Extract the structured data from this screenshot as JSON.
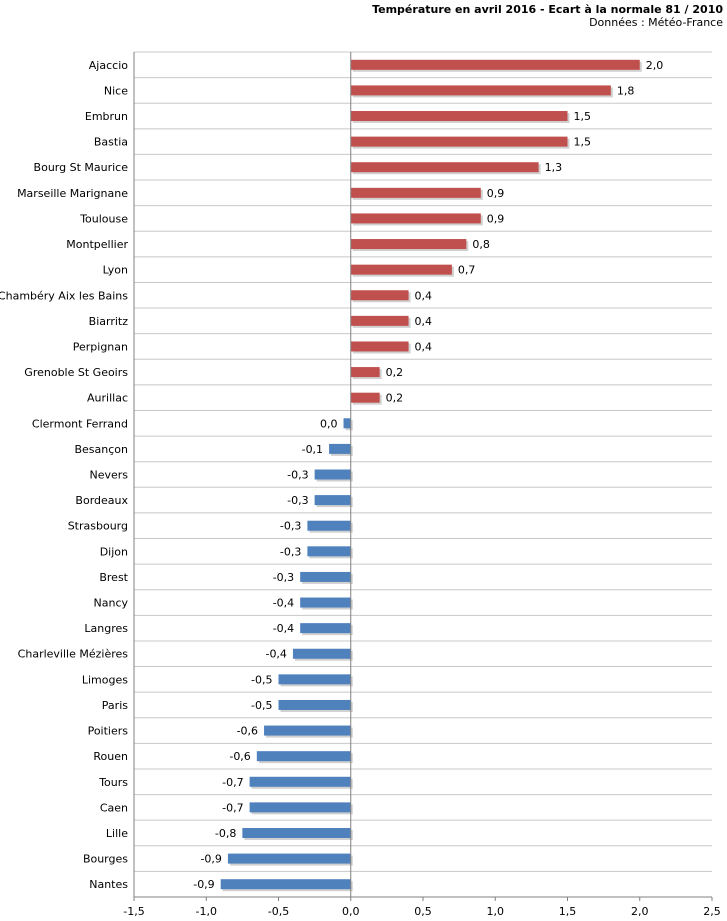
{
  "chart_data": {
    "type": "bar",
    "orientation": "horizontal",
    "title": "Température en avril 2016 - Ecart à la normale 81 / 2010",
    "subtitle": "Données : Météo-France",
    "categories": [
      "Ajaccio",
      "Nice",
      "Embrun",
      "Bastia",
      "Bourg St Maurice",
      "Marseille Marignane",
      "Toulouse",
      "Montpellier",
      "Lyon",
      "Chambéry Aix les Bains",
      "Biarritz",
      "Perpignan",
      "Grenoble St Geoirs",
      "Aurillac",
      "Clermont Ferrand",
      "Besançon",
      "Nevers",
      "Bordeaux",
      "Strasbourg",
      "Dijon",
      "Brest",
      "Nancy",
      "Langres",
      "Charleville Mézières",
      "Limoges",
      "Paris",
      "Poitiers",
      "Rouen",
      "Tours",
      "Caen",
      "Lille",
      "Bourges",
      "Nantes"
    ],
    "values": [
      2.0,
      1.8,
      1.5,
      1.5,
      1.3,
      0.9,
      0.9,
      0.8,
      0.7,
      0.4,
      0.4,
      0.4,
      0.2,
      0.2,
      -0.05,
      -0.15,
      -0.25,
      -0.25,
      -0.3,
      -0.3,
      -0.35,
      -0.35,
      -0.35,
      -0.4,
      -0.5,
      -0.5,
      -0.6,
      -0.65,
      -0.7,
      -0.7,
      -0.75,
      -0.85,
      -0.9
    ],
    "value_labels": [
      "2,0",
      "1,8",
      "1,5",
      "1,5",
      "1,3",
      "0,9",
      "0,9",
      "0,8",
      "0,7",
      "0,4",
      "0,4",
      "0,4",
      "0,2",
      "0,2",
      "0,0",
      "-0,1",
      "-0,3",
      "-0,3",
      "-0,3",
      "-0,3",
      "-0,3",
      "-0,4",
      "-0,4",
      "-0,4",
      "-0,5",
      "-0,5",
      "-0,6",
      "-0,6",
      "-0,7",
      "-0,7",
      "-0,8",
      "-0,9",
      "-0,9"
    ],
    "xlim": [
      -1.5,
      2.5
    ],
    "xticks": [
      -1.5,
      -1.0,
      -0.5,
      0.0,
      0.5,
      1.0,
      1.5,
      2.0,
      2.5
    ],
    "xtick_labels": [
      "-1,5",
      "-1,0",
      "-0,5",
      "0,0",
      "0,5",
      "1,0",
      "1,5",
      "2,0",
      "2,5"
    ],
    "grid": "horizontal",
    "colors": {
      "positive": "#c0504d",
      "negative": "#4f81bd",
      "grid": "#c8c8c8",
      "axis": "#808080",
      "shadow": "#b0b0b0"
    }
  }
}
